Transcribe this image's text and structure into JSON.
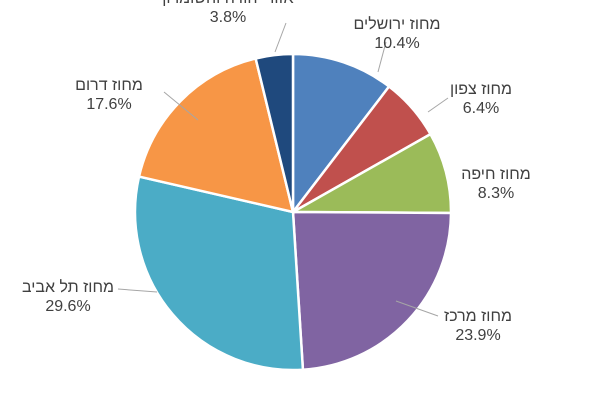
{
  "chart_data": {
    "type": "pie",
    "title": "",
    "start_angle_deg": 0,
    "direction": "clockwise",
    "slices": [
      {
        "label": "מחוז ירושלים",
        "value": 10.4,
        "value_label": "10.4%",
        "color": "#4f81bd"
      },
      {
        "label": "מחוז צפון",
        "value": 6.4,
        "value_label": "6.4%",
        "color": "#c0504d"
      },
      {
        "label": "מחוז חיפה",
        "value": 8.3,
        "value_label": "8.3%",
        "color": "#9bbb59"
      },
      {
        "label": "מחוז מרכז",
        "value": 23.9,
        "value_label": "23.9%",
        "color": "#8064a2"
      },
      {
        "label": "מחוז תל אביב",
        "value": 29.6,
        "value_label": "29.6%",
        "color": "#4bacc6"
      },
      {
        "label": "מחוז דרום",
        "value": 17.6,
        "value_label": "17.6%",
        "color": "#f79646"
      },
      {
        "label": "אזור יהודה והשומרון",
        "value": 3.8,
        "value_label": "3.8%",
        "color": "#1f497d"
      }
    ]
  }
}
